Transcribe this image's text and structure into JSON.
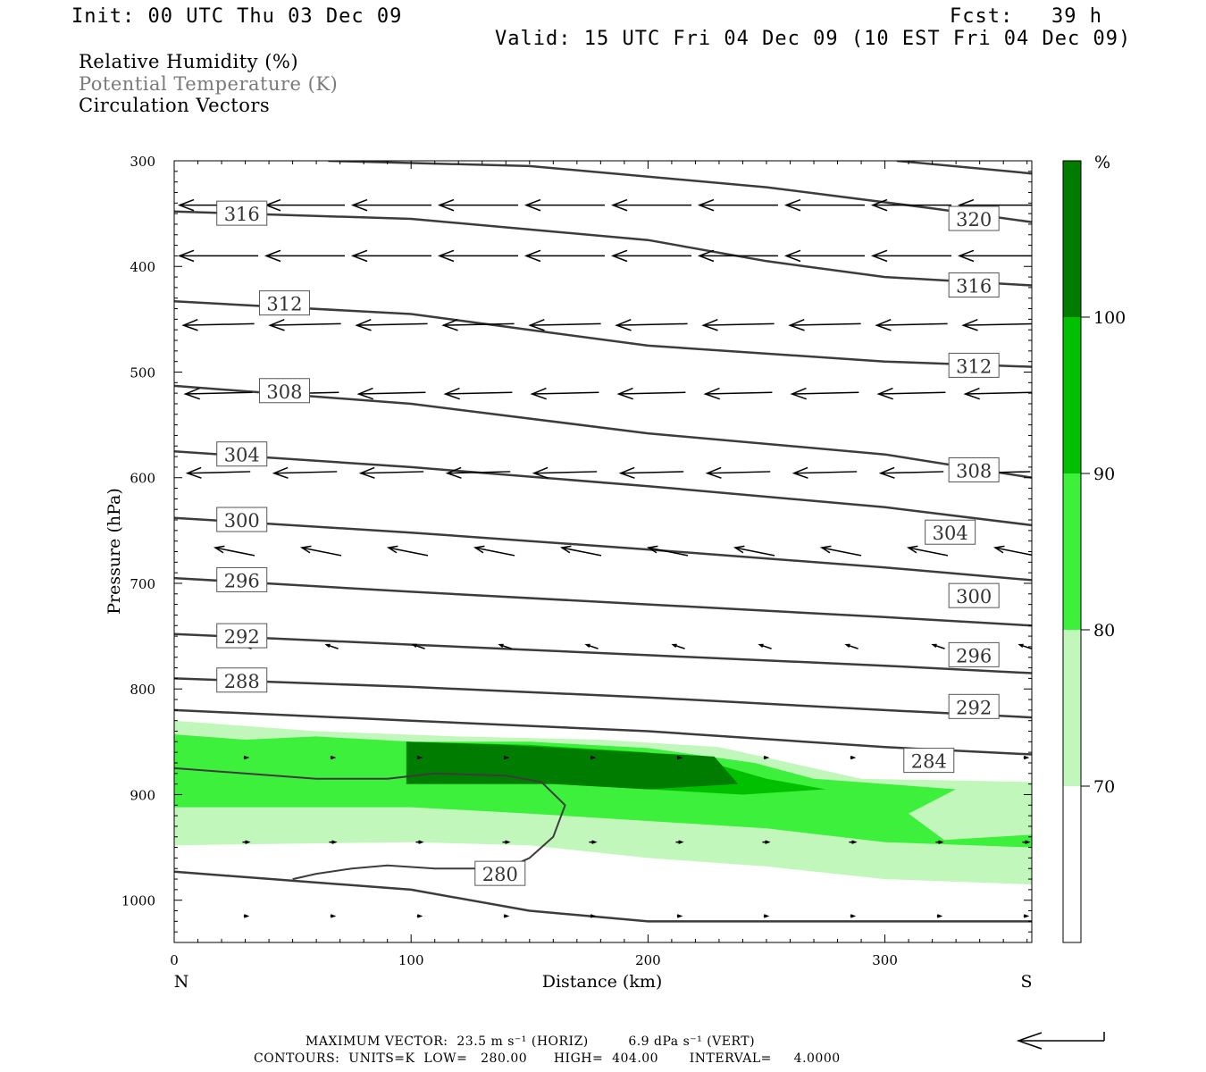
{
  "header": {
    "init": "Init: 00 UTC Thu 03 Dec 09",
    "fcst": "Fcst:   39 h",
    "valid": "Valid: 15 UTC Fri 04 Dec 09 (10 EST Fri 04 Dec 09)"
  },
  "fields": {
    "rh": "Relative Humidity (%)",
    "theta": "Potential Temperature (K)",
    "vectors": "Circulation Vectors"
  },
  "footer": {
    "max_vector": "MAXIMUM VECTOR:  23.5 m s⁻¹ (HORIZ)         6.9 dPa s⁻¹ (VERT)",
    "contours": "CONTOURS:  UNITS=K  LOW=   280.00      HIGH=  404.00       INTERVAL=     4.0000"
  },
  "colors": {
    "rh_70": "#c2f7bc",
    "rh_80": "#3cf03c",
    "rh_90": "#00c000",
    "rh_100": "#007d00",
    "contour": "#3c3c3c"
  },
  "chart_data": {
    "type": "contour",
    "xlabel": "Distance (km)",
    "ylabel": "Pressure (hPa)",
    "xlim": [
      0,
      362
    ],
    "ylim": [
      1040,
      300
    ],
    "x_ticks": [
      0,
      100,
      200,
      300
    ],
    "y_ticks": [
      300,
      400,
      500,
      600,
      700,
      800,
      900,
      1000
    ],
    "x_end_labels": {
      "left": "N",
      "right": "S"
    },
    "colorbar": {
      "unit": "%",
      "levels": [
        70,
        80,
        90,
        100
      ]
    },
    "rh_regions": [
      {
        "level": 70,
        "points": [
          [
            0,
            830
          ],
          [
            60,
            840
          ],
          [
            120,
            845
          ],
          [
            180,
            848
          ],
          [
            230,
            855
          ],
          [
            260,
            870
          ],
          [
            290,
            885
          ],
          [
            362,
            888
          ],
          [
            362,
            985
          ],
          [
            300,
            980
          ],
          [
            250,
            968
          ],
          [
            200,
            960
          ],
          [
            150,
            948
          ],
          [
            100,
            945
          ],
          [
            0,
            948
          ]
        ]
      },
      {
        "level": 80,
        "points": [
          [
            0,
            843
          ],
          [
            30,
            848
          ],
          [
            60,
            845
          ],
          [
            100,
            850
          ],
          [
            150,
            850
          ],
          [
            200,
            856
          ],
          [
            245,
            870
          ],
          [
            270,
            885
          ],
          [
            330,
            895
          ],
          [
            310,
            918
          ],
          [
            325,
            943
          ],
          [
            362,
            938
          ],
          [
            362,
            950
          ],
          [
            300,
            945
          ],
          [
            250,
            932
          ],
          [
            200,
            925
          ],
          [
            150,
            918
          ],
          [
            100,
            912
          ],
          [
            0,
            912
          ]
        ]
      },
      {
        "level": 90,
        "points": [
          [
            98,
            850
          ],
          [
            150,
            853
          ],
          [
            200,
            860
          ],
          [
            230,
            872
          ],
          [
            250,
            885
          ],
          [
            275,
            895
          ],
          [
            240,
            900
          ],
          [
            200,
            895
          ],
          [
            160,
            890
          ],
          [
            98,
            890
          ]
        ]
      },
      {
        "level": 100,
        "points": [
          [
            98,
            850
          ],
          [
            140,
            853
          ],
          [
            180,
            858
          ],
          [
            228,
            864
          ],
          [
            238,
            890
          ],
          [
            200,
            895
          ],
          [
            160,
            890
          ],
          [
            98,
            890
          ]
        ]
      }
    ],
    "theta_contours": [
      {
        "value": 280,
        "segments": [
          [
            [
              0,
              973
            ],
            [
              100,
              990
            ],
            [
              150,
              1010
            ],
            [
              200,
              1020
            ],
            [
              362,
              1020
            ]
          ],
          [
            [
              0,
              875
            ],
            [
              60,
              885
            ],
            [
              90,
              885
            ],
            [
              110,
              880
            ],
            [
              140,
              882
            ],
            [
              155,
              888
            ],
            [
              165,
              910
            ],
            [
              160,
              940
            ],
            [
              150,
              960
            ],
            [
              140,
              970
            ],
            [
              110,
              970
            ],
            [
              90,
              967
            ],
            [
              75,
              970
            ],
            [
              60,
              975
            ],
            [
              50,
              980
            ]
          ]
        ]
      },
      {
        "value": 284,
        "segments": [
          [
            [
              0,
              820
            ],
            [
              100,
              830
            ],
            [
              200,
              840
            ],
            [
              300,
              855
            ],
            [
              362,
              862
            ]
          ]
        ]
      },
      {
        "value": 288,
        "segments": [
          [
            [
              0,
              790
            ],
            [
              100,
              798
            ],
            [
              200,
              808
            ],
            [
              300,
              820
            ],
            [
              362,
              827
            ]
          ]
        ]
      },
      {
        "value": 292,
        "segments": [
          [
            [
              0,
              748
            ],
            [
              100,
              758
            ],
            [
              200,
              768
            ],
            [
              300,
              778
            ],
            [
              362,
              785
            ]
          ]
        ]
      },
      {
        "value": 296,
        "segments": [
          [
            [
              0,
              695
            ],
            [
              100,
              708
            ],
            [
              200,
              720
            ],
            [
              300,
              732
            ],
            [
              362,
              740
            ]
          ]
        ]
      },
      {
        "value": 300,
        "segments": [
          [
            [
              0,
              638
            ],
            [
              100,
              652
            ],
            [
              200,
              668
            ],
            [
              300,
              685
            ],
            [
              362,
              697
            ]
          ]
        ]
      },
      {
        "value": 304,
        "segments": [
          [
            [
              0,
              575
            ],
            [
              100,
              590
            ],
            [
              200,
              608
            ],
            [
              300,
              628
            ],
            [
              362,
              645
            ]
          ]
        ]
      },
      {
        "value": 308,
        "segments": [
          [
            [
              0,
              513
            ],
            [
              100,
              530
            ],
            [
              200,
              558
            ],
            [
              300,
              578
            ],
            [
              362,
              600
            ]
          ]
        ]
      },
      {
        "value": 312,
        "segments": [
          [
            [
              0,
              433
            ],
            [
              100,
              445
            ],
            [
              150,
              460
            ],
            [
              200,
              475
            ],
            [
              300,
              490
            ],
            [
              362,
              495
            ]
          ]
        ]
      },
      {
        "value": 316,
        "segments": [
          [
            [
              0,
              348
            ],
            [
              100,
              355
            ],
            [
              200,
              375
            ],
            [
              250,
              395
            ],
            [
              300,
              410
            ],
            [
              362,
              418
            ]
          ]
        ]
      },
      {
        "value": 320,
        "segments": [
          [
            [
              65,
              300
            ],
            [
              150,
              305
            ],
            [
              250,
              325
            ],
            [
              320,
              345
            ],
            [
              362,
              358
            ]
          ],
          [
            [
              305,
              300
            ],
            [
              362,
              312
            ]
          ]
        ]
      }
    ],
    "theta_labels": [
      {
        "value": "316",
        "x": 18,
        "p": 350
      },
      {
        "value": "312",
        "x": 36,
        "p": 435
      },
      {
        "value": "308",
        "x": 36,
        "p": 518
      },
      {
        "value": "304",
        "x": 18,
        "p": 578
      },
      {
        "value": "300",
        "x": 18,
        "p": 640
      },
      {
        "value": "296",
        "x": 18,
        "p": 697
      },
      {
        "value": "292",
        "x": 18,
        "p": 750
      },
      {
        "value": "288",
        "x": 18,
        "p": 792
      },
      {
        "value": "320",
        "x": 327,
        "p": 355
      },
      {
        "value": "316",
        "x": 327,
        "p": 418
      },
      {
        "value": "312",
        "x": 327,
        "p": 494
      },
      {
        "value": "308",
        "x": 327,
        "p": 593
      },
      {
        "value": "304",
        "x": 317,
        "p": 652
      },
      {
        "value": "300",
        "x": 327,
        "p": 712
      },
      {
        "value": "296",
        "x": 327,
        "p": 768
      },
      {
        "value": "292",
        "x": 327,
        "p": 817
      },
      {
        "value": "284",
        "x": 308,
        "p": 868
      },
      {
        "value": "280",
        "x": 127,
        "p": 975
      }
    ],
    "vector_rows": [
      {
        "p": 342,
        "u": -1.0,
        "w": 0.0,
        "offset": 0
      },
      {
        "p": 390,
        "u": -1.0,
        "w": 0.0,
        "offset": 0
      },
      {
        "p": 455,
        "u": -0.9,
        "w": -0.02,
        "offset": 0
      },
      {
        "p": 520,
        "u": -0.85,
        "w": -0.02,
        "offset": 0
      },
      {
        "p": 595,
        "u": -0.8,
        "w": -0.02,
        "offset": 0
      },
      {
        "p": 670,
        "u": -0.5,
        "w": 0.1,
        "offset": 18
      },
      {
        "p": 760,
        "u": -0.15,
        "w": 0.05,
        "offset": 30
      },
      {
        "p": 865,
        "u": 0.05,
        "w": 0.0,
        "offset": 30
      },
      {
        "p": 945,
        "u": 0.08,
        "w": 0.0,
        "offset": 30
      },
      {
        "p": 1015,
        "u": 0.05,
        "w": 0.0,
        "offset": 30
      }
    ],
    "reference_vector": {
      "u": -1.0,
      "w": 0.1
    }
  }
}
